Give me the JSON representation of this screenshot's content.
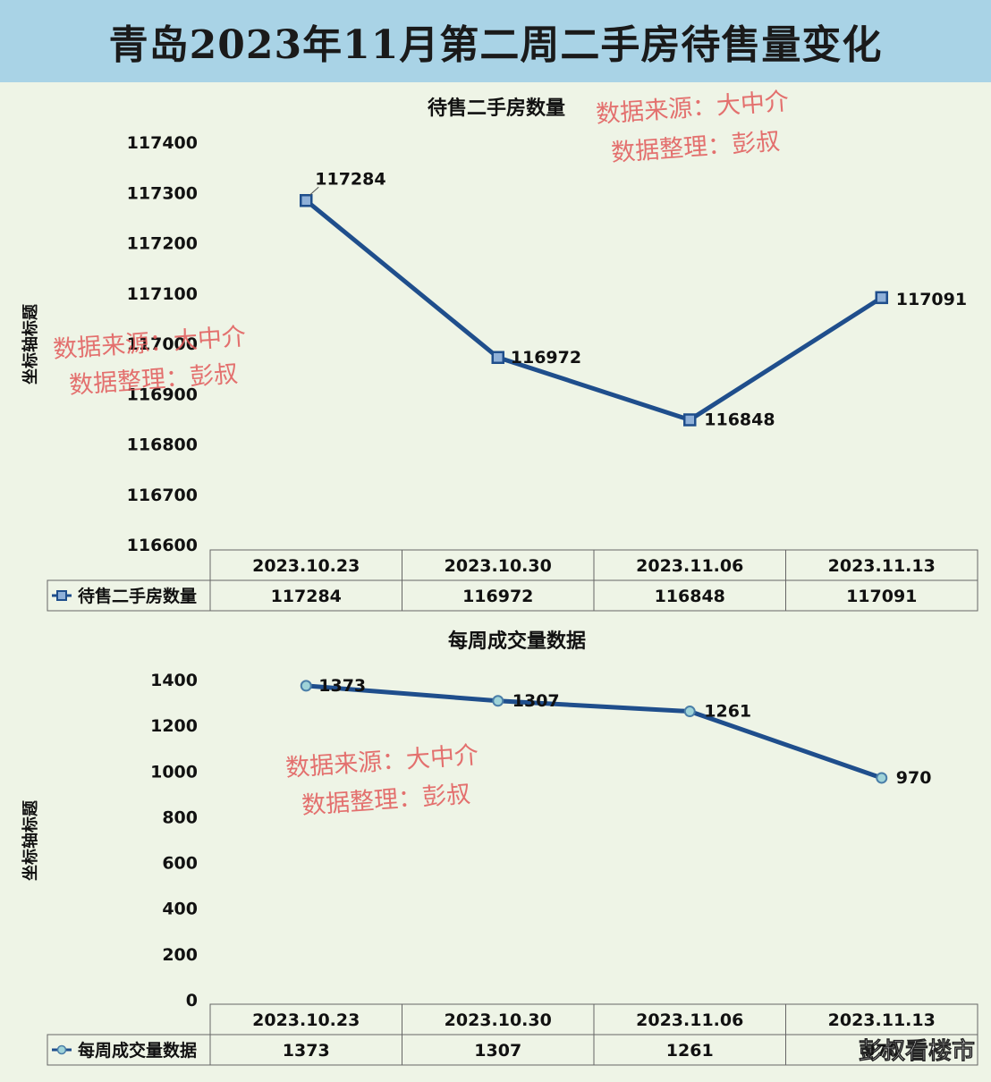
{
  "page_title": "青岛2023年11月第二周二手房待售量变化",
  "watermark": {
    "line1": "数据来源：大中介",
    "line2": "数据整理：彭叔"
  },
  "corner_brand": "彭叔看楼市",
  "chart_data": [
    {
      "type": "line",
      "title": "待售二手房数量",
      "ylabel": "坐标轴标题",
      "ylim": [
        116600,
        117400
      ],
      "yticks": [
        116600,
        116700,
        116800,
        116900,
        117000,
        117100,
        117200,
        117300,
        117400
      ],
      "categories": [
        "2023.10.23",
        "2023.10.30",
        "2023.11.06",
        "2023.11.13"
      ],
      "series": [
        {
          "name": "待售二手房数量",
          "values": [
            117284,
            116972,
            116848,
            117091
          ],
          "marker": "square",
          "color": "#1f4e8c"
        }
      ],
      "data_table": true
    },
    {
      "type": "line",
      "title": "每周成交量数据",
      "ylabel": "坐标轴标题",
      "ylim": [
        0,
        1400
      ],
      "yticks": [
        0,
        200,
        400,
        600,
        800,
        1000,
        1200,
        1400
      ],
      "categories": [
        "2023.10.23",
        "2023.10.30",
        "2023.11.06",
        "2023.11.13"
      ],
      "series": [
        {
          "name": "每周成交量数据",
          "values": [
            1373,
            1307,
            1261,
            970
          ],
          "marker": "circle",
          "color": "#1f4e8c"
        }
      ],
      "data_table": true
    }
  ]
}
